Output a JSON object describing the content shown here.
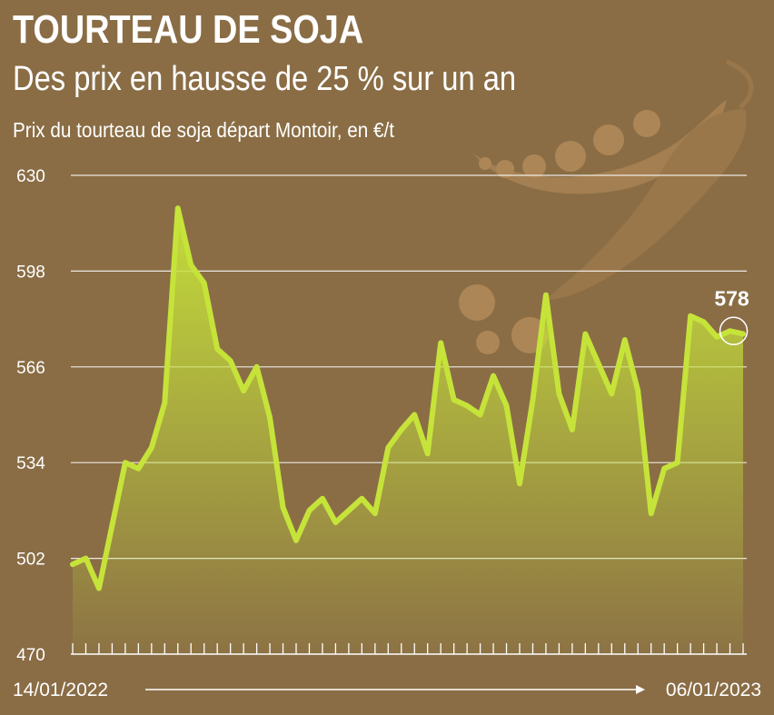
{
  "title": "TOURTEAU DE SOJA",
  "subtitle": "Des prix en hausse de 25 % sur un an",
  "unit_label": "Prix du tourteau de soja départ Montoir, en €/t",
  "colors": {
    "background": "#8a6d45",
    "line": "#c6e33a",
    "fill_top": "#c6e33a",
    "grid": "#ffffff",
    "text": "#ffffff"
  },
  "chart_data": {
    "type": "area",
    "title": "TOURTEAU DE SOJA",
    "subtitle": "Des prix en hausse de 25 % sur un an",
    "ylabel": "Prix du tourteau de soja départ Montoir, en €/t",
    "ylim": [
      470,
      630
    ],
    "yticks": [
      "470",
      "502",
      "534",
      "566",
      "598",
      "630"
    ],
    "x_start_label": "14/01/2022",
    "x_end_label": "06/01/2023",
    "grid": true,
    "last_value_label": "578",
    "series": [
      {
        "values": [
          500,
          502,
          492,
          513,
          534,
          532,
          539,
          554,
          619,
          600,
          594,
          572,
          568,
          558,
          566,
          549,
          519,
          508,
          518,
          522,
          514,
          518,
          522,
          517,
          539,
          545,
          550,
          537,
          574,
          555,
          553,
          550,
          563,
          553,
          527,
          555,
          590,
          557,
          545,
          577,
          567,
          557,
          575,
          558,
          517,
          532,
          534,
          583,
          581,
          576,
          578,
          577
        ]
      }
    ]
  }
}
